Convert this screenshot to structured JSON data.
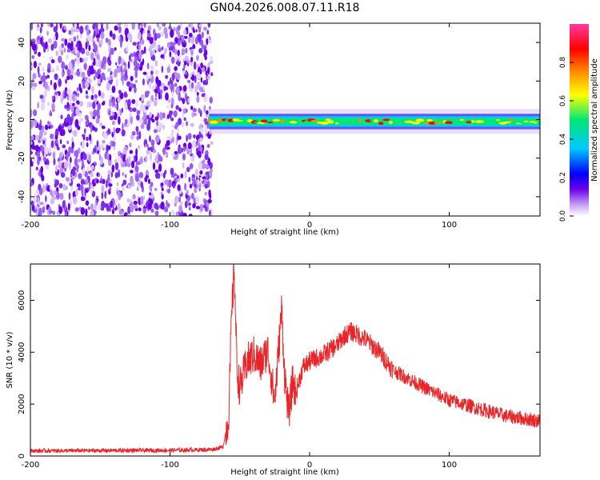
{
  "title": "GN04.2026.008.07.11.R18",
  "colors": {
    "snr_line": "#e8262a",
    "colormap": [
      "#ffffff",
      "#c59cf5",
      "#6a00e8",
      "#0000ff",
      "#00c8ff",
      "#00e676",
      "#ffff00",
      "#ff8c00",
      "#ff0000",
      "#ff3aa0"
    ]
  },
  "chart_data": [
    {
      "type": "heatmap",
      "title": "GN04.2026.008.07.11.R18",
      "xlabel": "Height of straight line (km)",
      "ylabel": "Frequency (Hz)",
      "xlim": [
        -200,
        165
      ],
      "ylim": [
        -50,
        50
      ],
      "x_ticks": [
        -200,
        -100,
        0,
        100
      ],
      "x_tick_labels": [
        "-200",
        "-100",
        "0",
        "100"
      ],
      "y_ticks": [
        -40,
        -20,
        0,
        20,
        40
      ],
      "y_tick_labels": [
        "-40",
        "-20",
        "0",
        "20",
        "40"
      ],
      "noise_region_x": [
        -200,
        -70
      ],
      "signal_band": {
        "x": [
          -72,
          165
        ],
        "center_frequency_hz": -1,
        "half_width_hz": 2.5
      },
      "colorbar": {
        "label": "Normalized spectral amplitude",
        "range": [
          0,
          1
        ],
        "ticks": [
          0.0,
          0.2,
          0.4,
          0.6,
          0.8
        ],
        "tick_labels": [
          "0.0",
          "0.2",
          "0.4",
          "0.6",
          "0.8"
        ]
      }
    },
    {
      "type": "line",
      "xlabel": "Height of straight line (km)",
      "ylabel": "SNR (10 * v/v)",
      "xlim": [
        -200,
        165
      ],
      "ylim": [
        0,
        7400
      ],
      "x_ticks": [
        -200,
        -100,
        0,
        100
      ],
      "x_tick_labels": [
        "-200",
        "-100",
        "0",
        "100"
      ],
      "y_ticks": [
        0,
        2000,
        4000,
        6000
      ],
      "y_tick_labels": [
        "0",
        "2000",
        "4000",
        "6000"
      ],
      "x": [
        -200,
        -150,
        -100,
        -70,
        -62,
        -58,
        -56,
        -54,
        -52,
        -50,
        -45,
        -40,
        -35,
        -30,
        -25,
        -20,
        -18,
        -15,
        -12,
        -10,
        -5,
        0,
        10,
        20,
        25,
        30,
        40,
        50,
        60,
        80,
        100,
        120,
        140,
        165
      ],
      "y": [
        200,
        210,
        220,
        250,
        350,
        1500,
        5200,
        7300,
        3300,
        2600,
        3600,
        3900,
        3500,
        4100,
        2100,
        5700,
        3200,
        1600,
        2900,
        2400,
        3400,
        3650,
        3900,
        4300,
        4650,
        4800,
        4500,
        4000,
        3300,
        2700,
        2150,
        1850,
        1550,
        1350
      ]
    }
  ]
}
